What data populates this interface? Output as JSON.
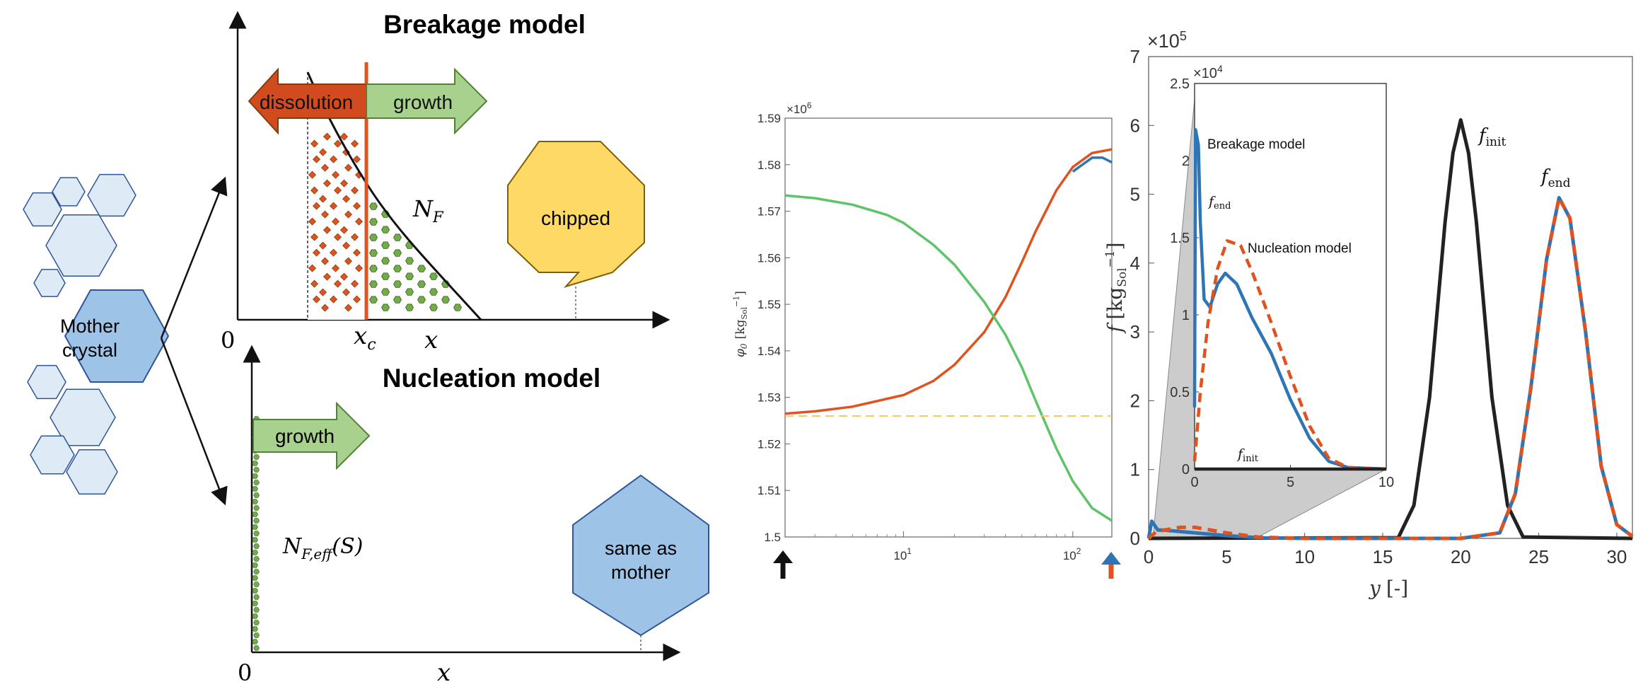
{
  "schematic": {
    "mother_label_line1": "Mother",
    "mother_label_line2": "crystal",
    "breakage": {
      "title": "Breakage model",
      "dissolution_label": "dissolution",
      "growth_label": "growth",
      "nf_label": "N",
      "nf_sub": "F",
      "xc_label": "x",
      "xc_sub": "c",
      "x_label": "x",
      "origin_label": "0",
      "fragment_label": "chipped"
    },
    "nucleation": {
      "title": "Nucleation model",
      "growth_label": "growth",
      "nf_label": "N",
      "nf_sub": "F,eff",
      "nf_arg": "(S)",
      "x_label": "x",
      "origin_label": "0",
      "fragment_label_line1": "same as",
      "fragment_label_line2": "mother"
    },
    "colors": {
      "dissolution": "#d24b1e",
      "growth": "#a9d18e",
      "crystal": "#bdd7ee",
      "mother": "#9dc3e6",
      "chipped": "#ffd966",
      "critical_line": "#e0531f"
    }
  },
  "chart_phi": {
    "multiplier": "×10",
    "multiplier_exp": "6",
    "ylabel": "φ",
    "ylabel_sub": "0",
    "ylabel_unit": "[kg",
    "ylabel_unit_sub": "Sol",
    "ylabel_unit_sup": "−1",
    "yticks": [
      "1.5",
      "1.51",
      "1.52",
      "1.53",
      "1.54",
      "1.55",
      "1.56",
      "1.57",
      "1.58",
      "1.59"
    ],
    "xtick_labels": [
      {
        "base": "10",
        "exp": "1"
      },
      {
        "base": "10",
        "exp": "2"
      }
    ]
  },
  "chart_f": {
    "multiplier": "×10",
    "multiplier_exp": "5",
    "ylabel": "f",
    "ylabel_unit": "[kg",
    "ylabel_unit_sub": "Sol",
    "ylabel_unit_sup": "−1",
    "xlabel": "y",
    "xlabel_unit": "[-]",
    "yticks": [
      "0",
      "1",
      "2",
      "3",
      "4",
      "5",
      "6",
      "7"
    ],
    "xticks": [
      "0",
      "5",
      "10",
      "15",
      "20",
      "25",
      "30"
    ],
    "f_init_label": "f",
    "f_init_sub": "init",
    "f_end_label": "f",
    "f_end_sub": "end",
    "inset": {
      "multiplier": "×10",
      "multiplier_exp": "4",
      "yticks": [
        "0",
        "0.5",
        "1",
        "1.5",
        "2",
        "2.5"
      ],
      "xticks": [
        "0",
        "5",
        "10"
      ],
      "breakage_label": "Breakage model",
      "nucleation_label": "Nucleation model",
      "f_end_label": "f",
      "f_end_sub": "end",
      "f_init_label": "f",
      "f_init_sub": "init"
    }
  },
  "chart_data": [
    {
      "type": "line",
      "x_scale": "log",
      "xlim": [
        2,
        170
      ],
      "ylim": [
        1.5,
        1.59
      ],
      "y_multiplier": "1e6",
      "series": [
        {
          "color": "#e0531f",
          "x": [
            2,
            3,
            5,
            10,
            15,
            20,
            30,
            40,
            50,
            60,
            80,
            100,
            130,
            170
          ],
          "y": [
            1.5265,
            1.527,
            1.528,
            1.5305,
            1.5335,
            1.537,
            1.544,
            1.5515,
            1.559,
            1.5655,
            1.5745,
            1.5795,
            1.5825,
            1.5833
          ]
        },
        {
          "color": "#2e75b6",
          "x": [
            100,
            130,
            150,
            170
          ],
          "y": [
            1.5785,
            1.5815,
            1.5815,
            1.5805
          ]
        },
        {
          "color": "#5fc36a",
          "x": [
            2,
            3,
            5,
            8,
            10,
            15,
            20,
            30,
            40,
            50,
            60,
            80,
            100,
            130,
            170
          ],
          "y": [
            1.5734,
            1.5728,
            1.5714,
            1.5692,
            1.5675,
            1.5628,
            1.5585,
            1.5505,
            1.5435,
            1.5365,
            1.5295,
            1.519,
            1.512,
            1.5062,
            1.5035
          ]
        },
        {
          "color": "#f4c96b",
          "dashed": true,
          "x": [
            2,
            170
          ],
          "y": [
            1.526,
            1.526
          ]
        }
      ]
    },
    {
      "type": "line",
      "xlim": [
        0,
        31
      ],
      "ylim": [
        0,
        7
      ],
      "y_multiplier": "1e5",
      "series": [
        {
          "color": "#222222",
          "x": [
            0,
            16,
            17,
            18,
            19,
            19.5,
            20,
            20.5,
            21,
            22,
            23,
            24,
            31
          ],
          "y": [
            0,
            0.01,
            0.48,
            2.05,
            4.6,
            5.6,
            6.08,
            5.6,
            4.6,
            2.05,
            0.48,
            0.02,
            0
          ]
        },
        {
          "color": "#2e75b6",
          "x": [
            0,
            0.2,
            0.6,
            1,
            2,
            3,
            5,
            7,
            10,
            20,
            22.5,
            23.5,
            24.5,
            25.5,
            26.3,
            27,
            28,
            29,
            30,
            31
          ],
          "y": [
            0,
            0.25,
            0.12,
            0.12,
            0.1,
            0.08,
            0.04,
            0.01,
            0,
            0,
            0.08,
            0.65,
            2.2,
            4.05,
            4.95,
            4.65,
            3.0,
            1.05,
            0.2,
            0.03
          ]
        },
        {
          "color": "#e0531f",
          "dashed": true,
          "x": [
            0,
            0.5,
            1,
            2,
            3,
            5,
            7,
            10,
            20,
            22.5,
            23.5,
            24.5,
            25.5,
            26.3,
            27,
            28,
            29,
            30,
            31
          ],
          "y": [
            0,
            0.1,
            0.12,
            0.16,
            0.16,
            0.08,
            0.02,
            0,
            0,
            0.08,
            0.65,
            2.2,
            4.05,
            4.95,
            4.65,
            3.0,
            1.05,
            0.2,
            0.03
          ]
        }
      ]
    },
    {
      "type": "line",
      "xlim": [
        0,
        10
      ],
      "ylim": [
        0,
        2.5
      ],
      "y_multiplier": "1e4",
      "series": [
        {
          "color": "#2e75b6",
          "x": [
            0,
            0.05,
            0.2,
            0.3,
            0.5,
            0.8,
            1.2,
            1.6,
            2.2,
            3,
            4,
            5,
            6,
            7,
            8,
            10
          ],
          "y": [
            0.4,
            2.2,
            2.1,
            1.6,
            1.1,
            1.05,
            1.2,
            1.27,
            1.2,
            0.98,
            0.75,
            0.45,
            0.2,
            0.05,
            0.01,
            0
          ]
        },
        {
          "color": "#e0531f",
          "dashed": true,
          "x": [
            0,
            0.3,
            0.7,
            1.2,
            1.7,
            2.4,
            3,
            4,
            5,
            6,
            7,
            8,
            10
          ],
          "y": [
            0.05,
            0.5,
            0.95,
            1.3,
            1.48,
            1.45,
            1.28,
            0.95,
            0.6,
            0.28,
            0.07,
            0.01,
            0
          ]
        },
        {
          "color": "#222222",
          "x": [
            0,
            10
          ],
          "y": [
            0,
            0
          ]
        }
      ]
    }
  ]
}
